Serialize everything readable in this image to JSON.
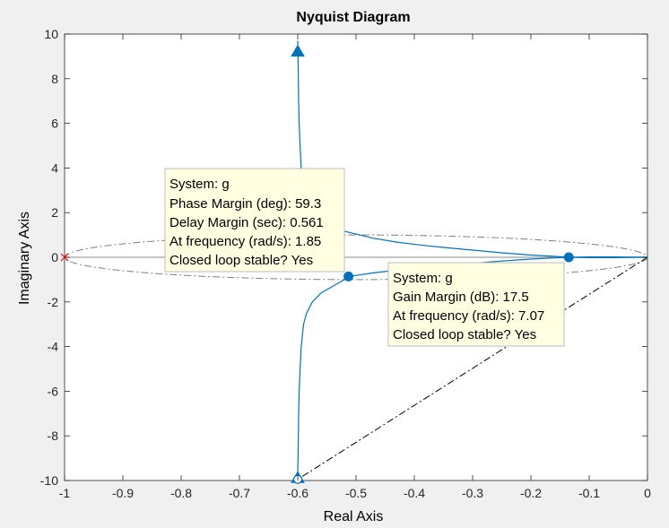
{
  "chart_data": {
    "type": "line",
    "title": "Nyquist Diagram",
    "xlabel": "Real Axis",
    "ylabel": "Imaginary Axis",
    "xlim": [
      -1,
      0
    ],
    "ylim": [
      -10,
      10
    ],
    "grid": false,
    "x_ticks": [
      -1,
      -0.9,
      -0.8,
      -0.7,
      -0.6,
      -0.5,
      -0.4,
      -0.3,
      -0.2,
      -0.1,
      0
    ],
    "x_tick_labels": [
      "-1",
      "-0.9",
      "-0.8",
      "-0.7",
      "-0.6",
      "-0.5",
      "-0.4",
      "-0.3",
      "-0.2",
      "-0.1",
      "0"
    ],
    "y_ticks": [
      -10,
      -8,
      -6,
      -4,
      -2,
      0,
      2,
      4,
      6,
      8,
      10
    ],
    "y_tick_labels": [
      "-10",
      "-8",
      "-6",
      "-4",
      "-2",
      "0",
      "2",
      "4",
      "6",
      "8",
      "10"
    ],
    "colors": {
      "curve": "#0072bd",
      "axis_line": "#a0a0a0",
      "critical_point": "#ff0000",
      "margin_guides": "#808080",
      "phase_line": "#000000"
    },
    "series": [
      {
        "upper_branch": [
          [
            -0.6,
            9.7
          ],
          [
            -0.5995,
            9.0
          ],
          [
            -0.599,
            8.0
          ],
          [
            -0.5985,
            7.0
          ],
          [
            -0.5975,
            6.0
          ],
          [
            -0.596,
            5.0
          ],
          [
            -0.594,
            4.0
          ],
          [
            -0.59,
            3.0
          ],
          [
            -0.585,
            2.5
          ],
          [
            -0.575,
            2.0
          ],
          [
            -0.56,
            1.6
          ],
          [
            -0.54,
            1.3
          ],
          [
            -0.51,
            1.1
          ],
          [
            -0.47,
            0.85
          ],
          [
            -0.43,
            0.68
          ],
          [
            -0.39,
            0.55
          ],
          [
            -0.35,
            0.44
          ],
          [
            -0.3,
            0.32
          ],
          [
            -0.25,
            0.2
          ],
          [
            -0.2,
            0.1
          ],
          [
            -0.16,
            0.04
          ],
          [
            -0.135,
            0.0
          ],
          [
            -0.1,
            -0.015
          ],
          [
            -0.06,
            -0.015
          ],
          [
            -0.02,
            -0.006
          ],
          [
            0,
            0
          ]
        ],
        "lower_branch": [
          [
            -0.6,
            -9.7
          ],
          [
            -0.5995,
            -9.0
          ],
          [
            -0.599,
            -8.0
          ],
          [
            -0.5985,
            -7.0
          ],
          [
            -0.5975,
            -6.0
          ],
          [
            -0.596,
            -5.0
          ],
          [
            -0.594,
            -4.0
          ],
          [
            -0.59,
            -3.0
          ],
          [
            -0.585,
            -2.5
          ],
          [
            -0.575,
            -2.0
          ],
          [
            -0.56,
            -1.6
          ],
          [
            -0.54,
            -1.3
          ],
          [
            -0.51,
            -0.85
          ],
          [
            -0.47,
            -0.7
          ],
          [
            -0.43,
            -0.58
          ],
          [
            -0.39,
            -0.47
          ],
          [
            -0.35,
            -0.38
          ],
          [
            -0.3,
            -0.27
          ],
          [
            -0.25,
            -0.17
          ],
          [
            -0.2,
            -0.08
          ],
          [
            -0.16,
            -0.03
          ],
          [
            -0.135,
            0.0
          ],
          [
            -0.1,
            0.015
          ],
          [
            -0.06,
            0.015
          ],
          [
            -0.02,
            0.006
          ],
          [
            0,
            0
          ]
        ]
      }
    ],
    "markers": {
      "arrow_top": [
        -0.6,
        9.25
      ],
      "arrow_bottom": [
        -0.6,
        -9.85
      ],
      "gain_margin_point": [
        -0.135,
        0
      ],
      "phase_margin_point": [
        -0.513,
        -0.86
      ],
      "open_circle": [
        -0.6,
        -9.95
      ],
      "critical_point": [
        -1,
        0
      ]
    },
    "phase_margin_line": [
      [
        0,
        0
      ],
      [
        -0.6,
        -9.95
      ]
    ],
    "annotations": [
      {
        "lines": [
          "System: g",
          "Phase Margin (deg): 59.3",
          "Delay Margin (sec): 0.561",
          "At frequency (rad/s): 1.85",
          "Closed loop stable? Yes"
        ]
      },
      {
        "lines": [
          "System: g",
          "Gain Margin (dB): 17.5",
          "At frequency (rad/s): 7.07",
          "Closed loop stable? Yes"
        ]
      }
    ]
  }
}
